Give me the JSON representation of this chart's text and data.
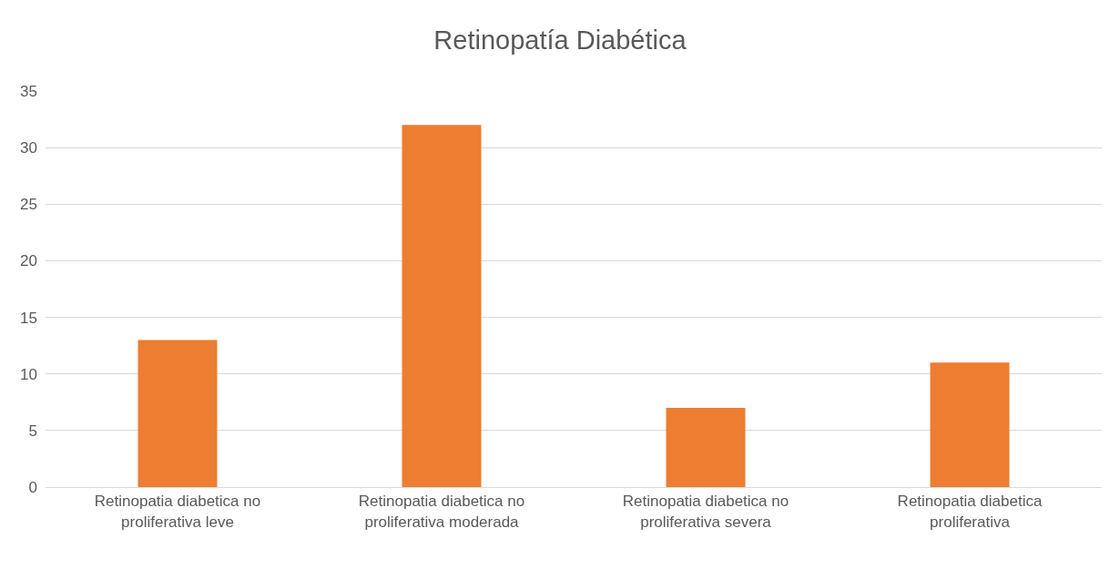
{
  "chart_data": {
    "type": "bar",
    "title": "Retinopatía Diabética",
    "categories": [
      "Retinopatia diabetica no proliferativa leve",
      "Retinopatia diabetica no proliferativa moderada",
      "Retinopatia diabetica no proliferativa severa",
      "Retinopatia diabetica proliferativa"
    ],
    "values": [
      13,
      32,
      7,
      11
    ],
    "color": "#ed7d31",
    "ylim": [
      0,
      35
    ],
    "yticks": [
      0,
      5,
      10,
      15,
      20,
      25,
      30,
      35
    ],
    "grid": "y"
  }
}
